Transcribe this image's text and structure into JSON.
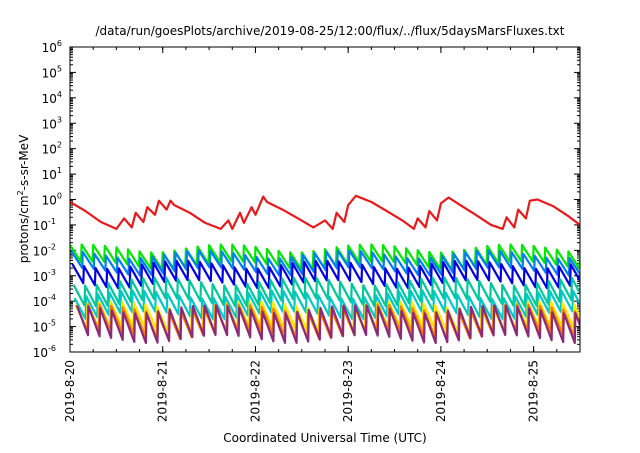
{
  "chart_data": {
    "type": "line",
    "title": "/data/run/goesPlots/archive/2019-08-25/12:00/flux/../flux/5daysMarsFluxes.txt",
    "xlabel": "Coordinated Universal Time (UTC)",
    "ylabel": {
      "prefix": "protons/cm",
      "sup": "2",
      "suffix": "-s-sr-MeV"
    },
    "y_scale": "log",
    "ylim": [
      1e-06,
      1000000.0
    ],
    "y_ticks": [
      {
        "base": "10",
        "exp": "6"
      },
      {
        "base": "10",
        "exp": "5"
      },
      {
        "base": "10",
        "exp": "4"
      },
      {
        "base": "10",
        "exp": "3"
      },
      {
        "base": "10",
        "exp": "2"
      },
      {
        "base": "10",
        "exp": "1"
      },
      {
        "base": "10",
        "exp": "0"
      },
      {
        "base": "10",
        "exp": "-1"
      },
      {
        "base": "10",
        "exp": "-2"
      },
      {
        "base": "10",
        "exp": "-3"
      },
      {
        "base": "10",
        "exp": "-4"
      },
      {
        "base": "10",
        "exp": "-5"
      },
      {
        "base": "10",
        "exp": "-6"
      }
    ],
    "xlim": [
      "2019-08-20T00:00",
      "2019-08-25T12:00"
    ],
    "x_ticks": [
      "2019-8-20",
      "2019-8-21",
      "2019-8-22",
      "2019-8-23",
      "2019-8-24",
      "2019-8-25"
    ],
    "grid": false,
    "legend": "none",
    "series": [
      {
        "color": "#e8191b",
        "x": [
          "2019-08-20T00:00",
          "2019-08-20T04:00",
          "2019-08-20T08:00",
          "2019-08-20T12:00",
          "2019-08-20T14:00",
          "2019-08-20T16:00",
          "2019-08-20T17:00",
          "2019-08-20T19:00",
          "2019-08-20T20:00",
          "2019-08-20T22:00",
          "2019-08-20T23:00",
          "2019-08-21T01:00",
          "2019-08-21T02:00",
          "2019-08-21T03:00",
          "2019-08-21T07:00",
          "2019-08-21T11:00",
          "2019-08-21T15:00",
          "2019-08-21T17:00",
          "2019-08-21T18:00",
          "2019-08-21T20:00",
          "2019-08-21T21:00",
          "2019-08-21T23:00",
          "2019-08-22T00:00",
          "2019-08-22T02:00",
          "2019-08-22T03:00",
          "2019-08-22T07:00",
          "2019-08-22T11:00",
          "2019-08-22T15:00",
          "2019-08-22T18:00",
          "2019-08-22T20:00",
          "2019-08-22T21:00",
          "2019-08-22T23:00",
          "2019-08-23T00:00",
          "2019-08-23T02:00",
          "2019-08-23T06:00",
          "2019-08-23T10:00",
          "2019-08-23T14:00",
          "2019-08-23T17:00",
          "2019-08-23T18:00",
          "2019-08-23T20:00",
          "2019-08-23T21:00",
          "2019-08-23T23:00",
          "2019-08-24T00:00",
          "2019-08-24T02:00",
          "2019-08-24T05:00",
          "2019-08-24T09:00",
          "2019-08-24T13:00",
          "2019-08-24T16:00",
          "2019-08-24T17:00",
          "2019-08-24T19:00",
          "2019-08-24T20:00",
          "2019-08-24T22:00",
          "2019-08-24T23:00",
          "2019-08-25T01:00",
          "2019-08-25T05:00",
          "2019-08-25T09:00",
          "2019-08-25T12:00"
        ],
        "y": [
          0.8,
          0.35,
          0.13,
          0.07,
          0.18,
          0.08,
          0.3,
          0.13,
          0.5,
          0.25,
          0.9,
          0.4,
          0.9,
          0.6,
          0.3,
          0.12,
          0.07,
          0.15,
          0.07,
          0.3,
          0.12,
          0.5,
          0.25,
          1.3,
          0.8,
          0.4,
          0.18,
          0.08,
          0.15,
          0.07,
          0.3,
          0.13,
          0.6,
          1.4,
          0.8,
          0.35,
          0.15,
          0.07,
          0.18,
          0.08,
          0.35,
          0.15,
          0.7,
          1.2,
          0.6,
          0.25,
          0.1,
          0.07,
          0.2,
          0.08,
          0.4,
          0.18,
          0.9,
          1.0,
          0.55,
          0.22,
          0.1
        ]
      },
      {
        "color": "#00e800",
        "base": 0.0045,
        "amp": 2.8,
        "phase": 0.0
      },
      {
        "color": "#007ff5",
        "base": 0.0026,
        "amp": 2.8,
        "phase": 0.1
      },
      {
        "color": "#0000e0",
        "base": 0.0009,
        "amp": 3.2,
        "phase": 0.2
      },
      {
        "color": "#00c89a",
        "base": 0.00018,
        "amp": 3.5,
        "phase": 0.3
      },
      {
        "color": "#00c8c8",
        "base": 5.5e-05,
        "amp": 3.5,
        "phase": 0.4
      },
      {
        "color": "#ffe600",
        "base": 1.6e-05,
        "amp": 4.5,
        "phase": 0.5
      },
      {
        "color": "#ff7a00",
        "base": 1.1e-05,
        "amp": 5.0,
        "phase": 0.55
      },
      {
        "color": "#8b2a7a",
        "base": 8.5e-06,
        "amp": 6.0,
        "phase": 0.6
      }
    ]
  }
}
